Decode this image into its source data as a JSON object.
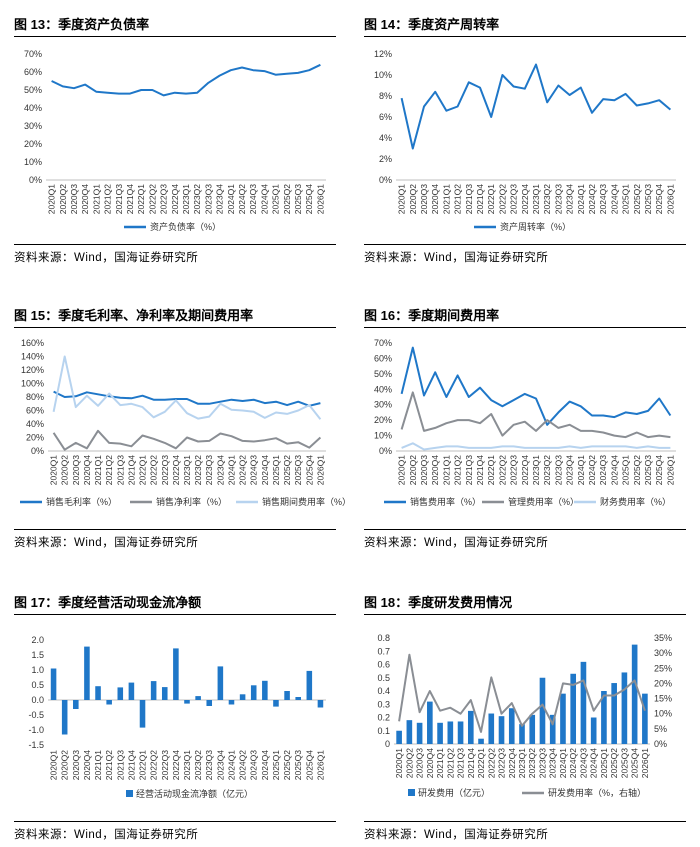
{
  "charts": [
    {
      "title": "图 13：季度资产负债率",
      "source": "资料来源：Wind，国海证券研究所",
      "chart_data": {
        "type": "line",
        "categories": [
          "2020Q1",
          "2020Q2",
          "2020Q3",
          "2020Q4",
          "2021Q1",
          "2021Q2",
          "2021Q3",
          "2021Q4",
          "2022Q1",
          "2022Q2",
          "2022Q3",
          "2022Q4",
          "2023Q1",
          "2023Q2",
          "2023Q3",
          "2023Q4",
          "2024Q1",
          "2024Q2",
          "2024Q3",
          "2024Q4",
          "2025Q1",
          "2025Q2",
          "2025Q3",
          "2025Q4",
          "2026Q1"
        ],
        "yticks": [
          "0%",
          "10%",
          "20%",
          "30%",
          "40%",
          "50%",
          "60%",
          "70%"
        ],
        "ylim": [
          0,
          70
        ],
        "series": [
          {
            "name": "资产负债率（%）",
            "color": "#1f77c8",
            "values": [
              55,
              52,
              51,
              53,
              49,
              48.5,
              48,
              48,
              50,
              50,
              47,
              48.5,
              48,
              48.5,
              54,
              58,
              61,
              62.5,
              61,
              60.5,
              58.5,
              59,
              59.5,
              61,
              64
            ]
          }
        ]
      }
    },
    {
      "title": "图 14：季度资产周转率",
      "source": "资料来源：Wind，国海证券研究所",
      "chart_data": {
        "type": "line",
        "categories": [
          "2020Q1",
          "2020Q2",
          "2020Q3",
          "2020Q4",
          "2021Q1",
          "2021Q2",
          "2021Q3",
          "2021Q4",
          "2022Q1",
          "2022Q2",
          "2022Q3",
          "2022Q4",
          "2023Q1",
          "2023Q2",
          "2023Q3",
          "2023Q4",
          "2024Q1",
          "2024Q2",
          "2024Q3",
          "2024Q4",
          "2025Q1",
          "2025Q2",
          "2025Q3",
          "2025Q4",
          "2026Q1"
        ],
        "yticks": [
          "0%",
          "2%",
          "4%",
          "6%",
          "8%",
          "10%",
          "12%"
        ],
        "ylim": [
          0,
          12
        ],
        "series": [
          {
            "name": "资产周转率（%）",
            "color": "#1f77c8",
            "values": [
              7.8,
              3.0,
              7.0,
              8.4,
              6.6,
              7.0,
              9.3,
              8.8,
              6.0,
              10.0,
              8.9,
              8.7,
              11.0,
              7.4,
              9.0,
              8.1,
              8.8,
              6.4,
              7.7,
              7.6,
              8.2,
              7.1,
              7.3,
              7.6,
              6.7
            ]
          }
        ]
      }
    },
    {
      "title": "图 15：季度毛利率、净利率及期间费用率",
      "source": "资料来源：Wind，国海证券研究所",
      "chart_data": {
        "type": "line",
        "categories": [
          "2020Q1",
          "2020Q2",
          "2020Q3",
          "2020Q4",
          "2021Q1",
          "2021Q2",
          "2021Q3",
          "2021Q4",
          "2022Q1",
          "2022Q2",
          "2022Q3",
          "2022Q4",
          "2023Q1",
          "2023Q2",
          "2023Q3",
          "2023Q4",
          "2024Q1",
          "2024Q2",
          "2024Q3",
          "2024Q4",
          "2025Q1",
          "2025Q2",
          "2025Q3",
          "2025Q4",
          "2026Q1"
        ],
        "yticks": [
          "0%",
          "20%",
          "40%",
          "60%",
          "80%",
          "100%",
          "120%",
          "140%",
          "160%"
        ],
        "ylim": [
          0,
          160
        ],
        "series": [
          {
            "name": "销售毛利率（%）",
            "color": "#1f77c8",
            "values": [
              88,
              80,
              81,
              87,
              84,
              81,
              79,
              78,
              82,
              76,
              76,
              77,
              77,
              70,
              70,
              73,
              76,
              74,
              76,
              71,
              73,
              68,
              73,
              67,
              71
            ]
          },
          {
            "name": "销售净利率（%）",
            "color": "#8a8e94",
            "values": [
              27,
              2,
              12,
              4,
              30,
              12,
              11,
              7,
              23,
              18,
              12,
              4,
              20,
              14,
              15,
              26,
              22,
              15,
              14,
              16,
              19,
              11,
              13,
              5,
              20
            ]
          },
          {
            "name": "销售期间费用率（%）",
            "color": "#b7d3ef",
            "values": [
              58,
              140,
              65,
              82,
              67,
              85,
              68,
              70,
              65,
              50,
              58,
              75,
              56,
              48,
              51,
              70,
              61,
              60,
              58,
              49,
              57,
              55,
              60,
              68,
              47
            ]
          }
        ]
      }
    },
    {
      "title": "图 16：季度期间费用率",
      "source": "资料来源：Wind，国海证券研究所",
      "chart_data": {
        "type": "line",
        "categories": [
          "2020Q1",
          "2020Q2",
          "2020Q3",
          "2020Q4",
          "2021Q1",
          "2021Q2",
          "2021Q3",
          "2021Q4",
          "2022Q1",
          "2022Q2",
          "2022Q3",
          "2022Q4",
          "2023Q1",
          "2023Q2",
          "2023Q3",
          "2023Q4",
          "2024Q1",
          "2024Q2",
          "2024Q3",
          "2024Q4",
          "2025Q1",
          "2025Q2",
          "2025Q3",
          "2025Q4",
          "2026Q1"
        ],
        "yticks": [
          "0%",
          "10%",
          "20%",
          "30%",
          "40%",
          "50%",
          "60%",
          "70%"
        ],
        "ylim": [
          0,
          70
        ],
        "series": [
          {
            "name": "销售费用率（%）",
            "color": "#1f77c8",
            "values": [
              37,
              67,
              36,
              51,
              35,
              49,
              35,
              41,
              33,
              29,
              33,
              37,
              34,
              17,
              25,
              32,
              29,
              23,
              23,
              22,
              25,
              24,
              26,
              34,
              23
            ]
          },
          {
            "name": "管理费用率（%）",
            "color": "#8a8e94",
            "values": [
              14,
              38,
              13,
              15,
              18,
              20,
              20,
              18,
              24,
              10,
              17,
              19,
              13,
              20,
              15,
              17,
              13,
              13,
              12,
              10,
              9,
              12,
              9,
              10,
              9
            ]
          },
          {
            "name": "财务费用率（%）",
            "color": "#b7d3ef",
            "values": [
              2,
              5,
              1,
              2,
              3,
              3,
              2,
              2,
              2,
              3,
              3,
              2,
              2,
              2,
              2,
              3,
              2,
              3,
              3,
              3,
              3,
              2,
              3,
              2,
              2
            ]
          }
        ]
      }
    },
    {
      "title": "图 17：季度经营活动现金流净额",
      "source": "资料来源：Wind，国海证券研究所",
      "chart_data": {
        "type": "bar",
        "categories": [
          "2020Q1",
          "2020Q2",
          "2020Q3",
          "2020Q4",
          "2021Q1",
          "2021Q2",
          "2021Q3",
          "2021Q4",
          "2022Q1",
          "2022Q2",
          "2022Q3",
          "2022Q4",
          "2023Q1",
          "2023Q2",
          "2023Q3",
          "2023Q4",
          "2024Q1",
          "2024Q2",
          "2024Q3",
          "2024Q4",
          "2025Q1",
          "2025Q2",
          "2025Q3",
          "2025Q4",
          "2026Q1"
        ],
        "yticks": [
          "-1.5",
          "-1.0",
          "-0.5",
          "0.0",
          "0.5",
          "1.0",
          "1.5",
          "2.0"
        ],
        "ylim": [
          -1.5,
          2.0
        ],
        "series": [
          {
            "name": "经营活动现金流净额（亿元）",
            "color": "#1f77c8",
            "values": [
              1.05,
              -1.15,
              -0.3,
              1.78,
              0.46,
              -0.15,
              0.42,
              0.58,
              -0.92,
              0.63,
              0.43,
              1.72,
              -0.12,
              0.13,
              -0.2,
              1.12,
              -0.15,
              0.19,
              0.49,
              0.64,
              -0.22,
              0.3,
              0.1,
              0.97,
              -0.25
            ]
          }
        ]
      }
    },
    {
      "title": "图 18：季度研发费用情况",
      "source": "资料来源：Wind，国海证券研究所",
      "chart_data": {
        "type": "bar",
        "categories": [
          "2020Q1",
          "2020Q2",
          "2020Q3",
          "2020Q4",
          "2021Q1",
          "2021Q2",
          "2021Q3",
          "2021Q4",
          "2022Q1",
          "2022Q2",
          "2022Q3",
          "2022Q4",
          "2023Q1",
          "2023Q2",
          "2023Q3",
          "2023Q4",
          "2024Q1",
          "2024Q2",
          "2024Q3",
          "2024Q4",
          "2025Q1",
          "2025Q2",
          "2025Q3",
          "2025Q4",
          "2026Q1"
        ],
        "yticks": [
          "0",
          "0.1",
          "0.2",
          "0.3",
          "0.4",
          "0.5",
          "0.6",
          "0.7",
          "0.8"
        ],
        "ylim": [
          0,
          0.8
        ],
        "y2ticks": [
          "0%",
          "5%",
          "10%",
          "15%",
          "20%",
          "25%",
          "30%",
          "35%"
        ],
        "y2lim": [
          0,
          35
        ],
        "series": [
          {
            "name": "研发费用（亿元）",
            "color": "#1f77c8",
            "kind": "bar",
            "values": [
              0.1,
              0.18,
              0.16,
              0.32,
              0.16,
              0.17,
              0.17,
              0.25,
              0.04,
              0.23,
              0.21,
              0.27,
              0.15,
              0.22,
              0.5,
              0.22,
              0.38,
              0.53,
              0.62,
              0.2,
              0.4,
              0.46,
              0.54,
              0.75,
              0.38
            ]
          },
          {
            "name": "研发费用率（%，右轴）",
            "color": "#8a8e94",
            "kind": "line",
            "axis": "right",
            "values": [
              7.5,
              29.5,
              10.5,
              17.5,
              11,
              12,
              10,
              14.5,
              4,
              22,
              10,
              13.5,
              6,
              10,
              13,
              6.5,
              20,
              19.5,
              21,
              11,
              16,
              16,
              18,
              21,
              11
            ]
          }
        ]
      }
    }
  ]
}
